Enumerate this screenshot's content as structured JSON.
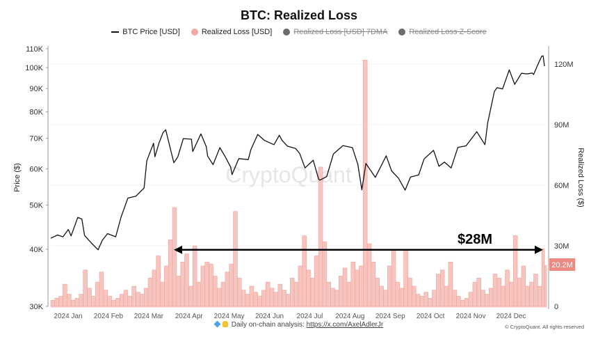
{
  "chart_data": {
    "type": "bar+line",
    "title": "BTC: Realized Loss",
    "legend": [
      {
        "label": "BTC Price [USD]",
        "color": "#111111",
        "marker": "line",
        "enabled": true
      },
      {
        "label": "Realized Loss [USD]",
        "color": "#f2a7a1",
        "marker": "dot",
        "enabled": true
      },
      {
        "label": "Realized Loss [USD] 7DMA",
        "color": "#6b6b70",
        "marker": "dot",
        "enabled": false
      },
      {
        "label": "Realized Loss Z-Score",
        "color": "#6b6b70",
        "marker": "dot",
        "enabled": false
      }
    ],
    "legend_position": "top-center",
    "x_axis": {
      "tick_labels": [
        "2024 Jan",
        "2024 Feb",
        "2024 Mar",
        "2024 Apr",
        "2024 May",
        "2024 Jun",
        "2024 Jul",
        "2024 Aug",
        "2024 Sep",
        "2024 Oct",
        "2024 Nov",
        "2024 Dec"
      ],
      "range": [
        "2023-12-19",
        "2024-12-18"
      ]
    },
    "y_left": {
      "label": "Price ($)",
      "scale": "log",
      "range": [
        30000,
        110000
      ],
      "tick_labels": [
        "30K",
        "40K",
        "50K",
        "60K",
        "70K",
        "80K",
        "90K",
        "100K",
        "110K"
      ],
      "tick_values": [
        30000,
        40000,
        50000,
        60000,
        70000,
        80000,
        90000,
        100000,
        110000
      ]
    },
    "y_right": {
      "label": "Realized Loss ($)",
      "scale": "linear",
      "range": [
        0,
        127600000
      ],
      "tick_labels": [
        "0",
        "30M",
        "60M",
        "90M",
        "120M"
      ],
      "tick_values": [
        0,
        30000000,
        60000000,
        90000000,
        120000000
      ]
    },
    "grid": true,
    "last_value_tag": "20.2M",
    "annotation": {
      "text": "$28M",
      "value": 28000000,
      "from": "2024-03-19",
      "to": "2024-12-18",
      "style": "double-arrow"
    },
    "watermark": "CryptoQuant",
    "price_series": {
      "name": "BTC Price [USD]",
      "points": [
        [
          "2023-12-19",
          42300
        ],
        [
          "2023-12-24",
          43000
        ],
        [
          "2023-12-28",
          42600
        ],
        [
          "2024-01-01",
          44200
        ],
        [
          "2024-01-03",
          42800
        ],
        [
          "2024-01-08",
          47000
        ],
        [
          "2024-01-11",
          46600
        ],
        [
          "2024-01-13",
          42900
        ],
        [
          "2024-01-18",
          41300
        ],
        [
          "2024-01-23",
          39900
        ],
        [
          "2024-01-26",
          41800
        ],
        [
          "2024-01-30",
          43300
        ],
        [
          "2024-02-05",
          42600
        ],
        [
          "2024-02-09",
          47100
        ],
        [
          "2024-02-14",
          51800
        ],
        [
          "2024-02-20",
          52300
        ],
        [
          "2024-02-26",
          54500
        ],
        [
          "2024-02-28",
          62500
        ],
        [
          "2024-03-04",
          68300
        ],
        [
          "2024-03-05",
          63800
        ],
        [
          "2024-03-08",
          68300
        ],
        [
          "2024-03-11",
          72100
        ],
        [
          "2024-03-13",
          73100
        ],
        [
          "2024-03-19",
          61900
        ],
        [
          "2024-03-22",
          63800
        ],
        [
          "2024-03-26",
          69900
        ],
        [
          "2024-04-01",
          69700
        ],
        [
          "2024-04-02",
          65500
        ],
        [
          "2024-04-08",
          71600
        ],
        [
          "2024-04-12",
          67100
        ],
        [
          "2024-04-13",
          64000
        ],
        [
          "2024-04-17",
          61300
        ],
        [
          "2024-04-22",
          66800
        ],
        [
          "2024-04-26",
          63800
        ],
        [
          "2024-04-30",
          60600
        ],
        [
          "2024-05-01",
          58300
        ],
        [
          "2024-05-06",
          63200
        ],
        [
          "2024-05-13",
          62900
        ],
        [
          "2024-05-15",
          66200
        ],
        [
          "2024-05-20",
          71400
        ],
        [
          "2024-05-25",
          69300
        ],
        [
          "2024-06-01",
          67800
        ],
        [
          "2024-06-05",
          71100
        ],
        [
          "2024-06-07",
          69300
        ],
        [
          "2024-06-11",
          67300
        ],
        [
          "2024-06-17",
          66500
        ],
        [
          "2024-06-20",
          64900
        ],
        [
          "2024-06-24",
          60300
        ],
        [
          "2024-06-30",
          62700
        ],
        [
          "2024-07-04",
          57000
        ],
        [
          "2024-07-05",
          56700
        ],
        [
          "2024-07-10",
          57700
        ],
        [
          "2024-07-15",
          64700
        ],
        [
          "2024-07-22",
          67500
        ],
        [
          "2024-07-29",
          66800
        ],
        [
          "2024-08-02",
          61400
        ],
        [
          "2024-08-05",
          54000
        ],
        [
          "2024-08-08",
          61700
        ],
        [
          "2024-08-15",
          57500
        ],
        [
          "2024-08-23",
          64100
        ],
        [
          "2024-08-27",
          59400
        ],
        [
          "2024-09-01",
          57300
        ],
        [
          "2024-09-06",
          53900
        ],
        [
          "2024-09-10",
          57600
        ],
        [
          "2024-09-16",
          58200
        ],
        [
          "2024-09-20",
          63100
        ],
        [
          "2024-09-27",
          65900
        ],
        [
          "2024-10-01",
          60800
        ],
        [
          "2024-10-05",
          62100
        ],
        [
          "2024-10-10",
          60300
        ],
        [
          "2024-10-15",
          66900
        ],
        [
          "2024-10-21",
          67400
        ],
        [
          "2024-10-29",
          72400
        ],
        [
          "2024-11-04",
          67800
        ],
        [
          "2024-11-06",
          75600
        ],
        [
          "2024-11-11",
          88700
        ],
        [
          "2024-11-13",
          90400
        ],
        [
          "2024-11-17",
          89800
        ],
        [
          "2024-11-22",
          98900
        ],
        [
          "2024-11-26",
          91900
        ],
        [
          "2024-12-01",
          97200
        ],
        [
          "2024-12-05",
          96900
        ],
        [
          "2024-12-09",
          97300
        ],
        [
          "2024-12-10",
          96600
        ],
        [
          "2024-12-13",
          101400
        ],
        [
          "2024-12-16",
          106000
        ],
        [
          "2024-12-17",
          106100
        ],
        [
          "2024-12-18",
          100800
        ]
      ]
    },
    "loss_series": {
      "name": "Realized Loss [USD]",
      "unit": "M USD",
      "points": [
        [
          "2023-12-19",
          3
        ],
        [
          "2023-12-22",
          4
        ],
        [
          "2023-12-25",
          5
        ],
        [
          "2023-12-28",
          11
        ],
        [
          "2023-12-31",
          6
        ],
        [
          "2024-01-03",
          3
        ],
        [
          "2024-01-06",
          4
        ],
        [
          "2024-01-09",
          6
        ],
        [
          "2024-01-12",
          18
        ],
        [
          "2024-01-15",
          9
        ],
        [
          "2024-01-18",
          5
        ],
        [
          "2024-01-21",
          12
        ],
        [
          "2024-01-24",
          17
        ],
        [
          "2024-01-27",
          8
        ],
        [
          "2024-01-30",
          5
        ],
        [
          "2024-02-02",
          3
        ],
        [
          "2024-02-05",
          4
        ],
        [
          "2024-02-08",
          6
        ],
        [
          "2024-02-11",
          8
        ],
        [
          "2024-02-14",
          5
        ],
        [
          "2024-02-17",
          10
        ],
        [
          "2024-02-20",
          7
        ],
        [
          "2024-02-23",
          6
        ],
        [
          "2024-02-26",
          9
        ],
        [
          "2024-02-29",
          14
        ],
        [
          "2024-03-03",
          18
        ],
        [
          "2024-03-06",
          25
        ],
        [
          "2024-03-09",
          12
        ],
        [
          "2024-03-12",
          20
        ],
        [
          "2024-03-15",
          33
        ],
        [
          "2024-03-18",
          49
        ],
        [
          "2024-03-21",
          15
        ],
        [
          "2024-03-24",
          22
        ],
        [
          "2024-03-27",
          26
        ],
        [
          "2024-03-30",
          10
        ],
        [
          "2024-04-02",
          30
        ],
        [
          "2024-04-05",
          12
        ],
        [
          "2024-04-08",
          20
        ],
        [
          "2024-04-11",
          22
        ],
        [
          "2024-04-14",
          21
        ],
        [
          "2024-04-17",
          15
        ],
        [
          "2024-04-20",
          9
        ],
        [
          "2024-04-23",
          12
        ],
        [
          "2024-04-26",
          17
        ],
        [
          "2024-04-29",
          21
        ],
        [
          "2024-05-02",
          47
        ],
        [
          "2024-05-05",
          14
        ],
        [
          "2024-05-08",
          8
        ],
        [
          "2024-05-11",
          6
        ],
        [
          "2024-05-14",
          10
        ],
        [
          "2024-05-17",
          7
        ],
        [
          "2024-05-20",
          5
        ],
        [
          "2024-05-23",
          8
        ],
        [
          "2024-05-26",
          12
        ],
        [
          "2024-05-29",
          9
        ],
        [
          "2024-06-01",
          7
        ],
        [
          "2024-06-04",
          11
        ],
        [
          "2024-06-07",
          8
        ],
        [
          "2024-06-10",
          6
        ],
        [
          "2024-06-13",
          14
        ],
        [
          "2024-06-16",
          12
        ],
        [
          "2024-06-19",
          20
        ],
        [
          "2024-06-22",
          35
        ],
        [
          "2024-06-25",
          18
        ],
        [
          "2024-06-28",
          14
        ],
        [
          "2024-07-01",
          25
        ],
        [
          "2024-07-04",
          69
        ],
        [
          "2024-07-07",
          32
        ],
        [
          "2024-07-10",
          12
        ],
        [
          "2024-07-13",
          9
        ],
        [
          "2024-07-16",
          8
        ],
        [
          "2024-07-19",
          15
        ],
        [
          "2024-07-22",
          19
        ],
        [
          "2024-07-25",
          12
        ],
        [
          "2024-07-28",
          22
        ],
        [
          "2024-07-31",
          18
        ],
        [
          "2024-08-03",
          20
        ],
        [
          "2024-08-06",
          122
        ],
        [
          "2024-08-09",
          31
        ],
        [
          "2024-08-12",
          22
        ],
        [
          "2024-08-15",
          14
        ],
        [
          "2024-08-18",
          10
        ],
        [
          "2024-08-21",
          8
        ],
        [
          "2024-08-24",
          20
        ],
        [
          "2024-08-27",
          28
        ],
        [
          "2024-08-30",
          12
        ],
        [
          "2024-09-02",
          9
        ],
        [
          "2024-09-05",
          28
        ],
        [
          "2024-09-08",
          14
        ],
        [
          "2024-09-11",
          10
        ],
        [
          "2024-09-14",
          6
        ],
        [
          "2024-09-17",
          5
        ],
        [
          "2024-09-20",
          7
        ],
        [
          "2024-09-23",
          4
        ],
        [
          "2024-09-26",
          8
        ],
        [
          "2024-09-29",
          16
        ],
        [
          "2024-10-02",
          18
        ],
        [
          "2024-10-05",
          10
        ],
        [
          "2024-10-08",
          22
        ],
        [
          "2024-10-11",
          8
        ],
        [
          "2024-10-14",
          5
        ],
        [
          "2024-10-17",
          3
        ],
        [
          "2024-10-20",
          4
        ],
        [
          "2024-10-23",
          7
        ],
        [
          "2024-10-26",
          12
        ],
        [
          "2024-10-29",
          14
        ],
        [
          "2024-11-01",
          8
        ],
        [
          "2024-11-04",
          6
        ],
        [
          "2024-11-07",
          9
        ],
        [
          "2024-11-10",
          16
        ],
        [
          "2024-11-13",
          14
        ],
        [
          "2024-11-16",
          10
        ],
        [
          "2024-11-19",
          18
        ],
        [
          "2024-11-22",
          12
        ],
        [
          "2024-11-25",
          35
        ],
        [
          "2024-11-28",
          14
        ],
        [
          "2024-12-01",
          20
        ],
        [
          "2024-12-04",
          10
        ],
        [
          "2024-12-07",
          12
        ],
        [
          "2024-12-10",
          16
        ],
        [
          "2024-12-13",
          10
        ],
        [
          "2024-12-16",
          28.6
        ],
        [
          "2024-12-18",
          20.2
        ]
      ]
    }
  },
  "footer": {
    "icons": [
      "gem-icon",
      "raised-hands-icon"
    ],
    "text": "Daily on-chain analysis:",
    "link": "https://x.com/AxelAdlerJr",
    "copyright": "© CryptoQuant. All rights reserved"
  }
}
